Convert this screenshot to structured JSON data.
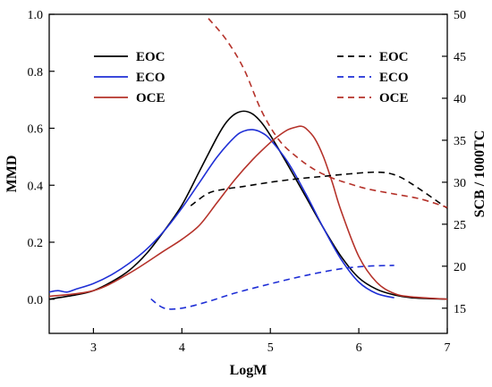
{
  "chart_data": {
    "type": "line",
    "xlabel": "LogM",
    "ylabel_left": "MMD",
    "ylabel_right": "SCB / 1000TC",
    "xlim": [
      2.5,
      7
    ],
    "ylim_left": [
      -0.12,
      1.0
    ],
    "ylim_right": [
      12,
      50
    ],
    "x_ticks": [
      3,
      4,
      5,
      6,
      7
    ],
    "y_left_ticks": [
      0.0,
      0.2,
      0.4,
      0.6,
      0.8,
      1.0
    ],
    "y_left_tick_labels": [
      "0.0",
      "0.2",
      "0.4",
      "0.6",
      "0.8",
      "1.0"
    ],
    "y_right_ticks": [
      15,
      20,
      25,
      30,
      35,
      40,
      45,
      50
    ],
    "grid": false,
    "legend_left_placement": "top-left",
    "legend_right_placement": "top-right",
    "series": [
      {
        "name": "EOC",
        "axis": "left",
        "style": "solid",
        "color": "#000000",
        "x": [
          2.5,
          2.8,
          3.0,
          3.2,
          3.4,
          3.6,
          3.8,
          4.0,
          4.2,
          4.4,
          4.5,
          4.6,
          4.7,
          4.8,
          4.9,
          5.0,
          5.2,
          5.4,
          5.6,
          5.8,
          6.0,
          6.2,
          6.4,
          6.6,
          7.0
        ],
        "y": [
          0.0,
          0.015,
          0.03,
          0.06,
          0.1,
          0.16,
          0.24,
          0.33,
          0.45,
          0.57,
          0.62,
          0.65,
          0.66,
          0.65,
          0.62,
          0.575,
          0.47,
          0.36,
          0.25,
          0.15,
          0.075,
          0.035,
          0.015,
          0.005,
          0.0
        ]
      },
      {
        "name": "ECO",
        "axis": "left",
        "style": "solid",
        "color": "#1f2fd6",
        "x": [
          2.5,
          2.6,
          2.7,
          2.8,
          3.0,
          3.2,
          3.4,
          3.6,
          3.8,
          4.0,
          4.2,
          4.4,
          4.6,
          4.7,
          4.8,
          4.9,
          5.0,
          5.2,
          5.4,
          5.6,
          5.8,
          6.0,
          6.2,
          6.4
        ],
        "y": [
          0.025,
          0.03,
          0.025,
          0.035,
          0.055,
          0.085,
          0.125,
          0.175,
          0.24,
          0.32,
          0.41,
          0.5,
          0.57,
          0.59,
          0.595,
          0.585,
          0.56,
          0.48,
          0.37,
          0.25,
          0.14,
          0.06,
          0.02,
          0.005
        ]
      },
      {
        "name": "OCE",
        "axis": "left",
        "style": "solid",
        "color": "#b5322a",
        "x": [
          2.5,
          3.0,
          3.4,
          3.8,
          4.0,
          4.2,
          4.4,
          4.6,
          4.8,
          5.0,
          5.1,
          5.2,
          5.3,
          5.35,
          5.4,
          5.5,
          5.6,
          5.7,
          5.8,
          6.0,
          6.2,
          6.4,
          6.6,
          7.0
        ],
        "y": [
          0.01,
          0.03,
          0.09,
          0.17,
          0.21,
          0.26,
          0.34,
          0.42,
          0.49,
          0.55,
          0.575,
          0.595,
          0.605,
          0.607,
          0.6,
          0.565,
          0.5,
          0.41,
          0.31,
          0.15,
          0.06,
          0.02,
          0.008,
          0.0
        ]
      },
      {
        "name": "EOC",
        "axis": "right",
        "style": "dashed",
        "color": "#000000",
        "x": [
          4.1,
          4.3,
          4.5,
          4.7,
          5.0,
          5.3,
          5.6,
          5.9,
          6.2,
          6.4,
          6.6,
          7.0
        ],
        "y": [
          27.2,
          28.7,
          29.2,
          29.5,
          30.0,
          30.4,
          30.7,
          31.0,
          31.2,
          30.9,
          29.8,
          26.9
        ]
      },
      {
        "name": "ECO",
        "axis": "right",
        "style": "dashed",
        "color": "#1f2fd6",
        "x": [
          3.65,
          3.8,
          4.0,
          4.3,
          4.6,
          5.0,
          5.4,
          5.8,
          6.1,
          6.4
        ],
        "y": [
          16.1,
          15.0,
          15.0,
          15.8,
          16.8,
          17.9,
          18.9,
          19.7,
          20.0,
          20.1
        ]
      },
      {
        "name": "OCE",
        "axis": "right",
        "style": "dashed",
        "color": "#b5322a",
        "x": [
          4.3,
          4.5,
          4.7,
          4.9,
          5.1,
          5.3,
          5.5,
          5.7,
          5.9,
          6.1,
          6.4,
          6.7,
          7.0
        ],
        "y": [
          49.5,
          47.0,
          43.5,
          38.5,
          35.0,
          33.0,
          31.5,
          30.5,
          29.8,
          29.2,
          28.6,
          28.0,
          27.0
        ]
      }
    ]
  }
}
